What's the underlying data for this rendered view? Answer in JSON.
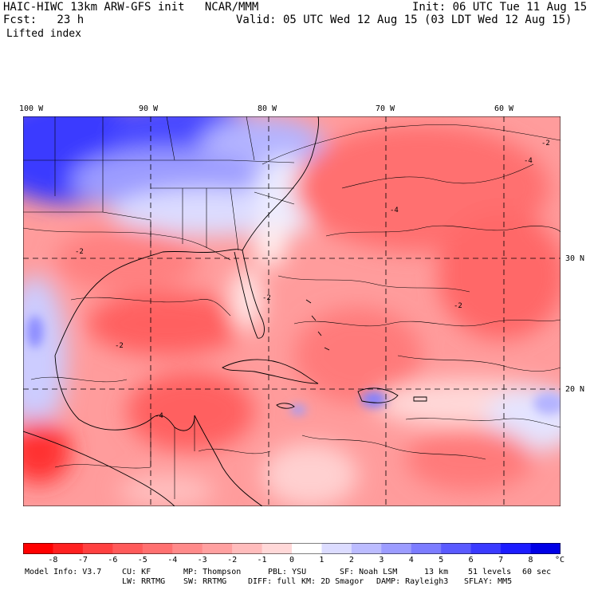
{
  "header": {
    "model_line": "HAIC-HIWC 13km ARW-GFS init   NCAR/MMM",
    "fcst_line": "Fcst:   23 h",
    "init_line": "Init: 06 UTC Tue 11 Aug 15",
    "valid_line": "Valid: 05 UTC Wed 12 Aug 15 (03 LDT Wed 12 Aug 15)",
    "field": "Lifted index"
  },
  "map": {
    "lon_labels": [
      "100 W",
      "90 W",
      "80 W",
      "70 W",
      "60 W"
    ],
    "lat_labels": [
      "30 N",
      "20 N"
    ],
    "contour_labels": [
      "-2",
      "-4",
      "-2",
      "-4",
      "-2",
      "-4",
      "-2",
      "-2"
    ]
  },
  "colorbar": {
    "labels": [
      "-8",
      "-7",
      "-6",
      "-5",
      "-4",
      "-3",
      "-2",
      "-1",
      "0",
      "1",
      "2",
      "3",
      "4",
      "5",
      "6",
      "7",
      "8"
    ],
    "unit": "°C",
    "colors": [
      "#ff0000",
      "#ff2020",
      "#ff4040",
      "#ff5a5a",
      "#ff7070",
      "#ff8a8a",
      "#ffa0a0",
      "#ffbcbc",
      "#ffd8d8",
      "#ffffff",
      "#dcdcff",
      "#bcbcff",
      "#9c9cff",
      "#7c7cff",
      "#5a5aff",
      "#3a3aff",
      "#1c1cff",
      "#0000e6"
    ]
  },
  "info": {
    "line1": [
      "Model Info: V3.7",
      "CU: KF",
      "MP: Thompson",
      "PBL: YSU",
      "SF: Noah LSM",
      "13 km",
      "51 levels",
      "60 sec"
    ],
    "line2": [
      "LW: RRTMG",
      "SW: RRTMG",
      "DIFF: full",
      "KM: 2D Smagor",
      "DAMP: Rayleigh3",
      "SFLAY: MM5"
    ]
  }
}
